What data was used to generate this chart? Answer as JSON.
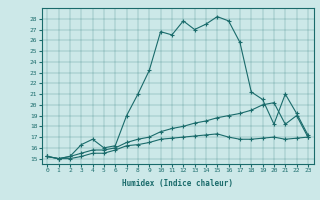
{
  "xlabel": "Humidex (Indice chaleur)",
  "background_color": "#cce8e8",
  "line_color": "#1a6b6b",
  "xlim": [
    -0.5,
    23.5
  ],
  "ylim": [
    14.5,
    29.0
  ],
  "xtick_labels": [
    "0",
    "1",
    "2",
    "3",
    "4",
    "5",
    "6",
    "7",
    "8",
    "9",
    "10",
    "11",
    "12",
    "13",
    "14",
    "15",
    "16",
    "17",
    "18",
    "19",
    "20",
    "21",
    "22",
    "23"
  ],
  "ytick_values": [
    15,
    16,
    17,
    18,
    19,
    20,
    21,
    22,
    23,
    24,
    25,
    26,
    27,
    28
  ],
  "series1": [
    15.2,
    15.0,
    15.2,
    16.3,
    16.8,
    16.0,
    16.2,
    19.0,
    21.0,
    23.2,
    26.8,
    26.5,
    27.8,
    27.0,
    27.5,
    28.2,
    27.8,
    25.8,
    21.2,
    20.5,
    18.2,
    21.0,
    19.2,
    17.2
  ],
  "series2": [
    15.2,
    15.0,
    15.2,
    15.5,
    15.8,
    15.8,
    16.0,
    16.5,
    16.8,
    17.0,
    17.5,
    17.8,
    18.0,
    18.3,
    18.5,
    18.8,
    19.0,
    19.2,
    19.5,
    20.0,
    20.2,
    18.2,
    19.0,
    17.0
  ],
  "series3": [
    15.2,
    15.0,
    15.0,
    15.2,
    15.5,
    15.5,
    15.8,
    16.2,
    16.3,
    16.5,
    16.8,
    16.9,
    17.0,
    17.1,
    17.2,
    17.3,
    17.0,
    16.8,
    16.8,
    16.9,
    17.0,
    16.8,
    16.9,
    17.0
  ]
}
